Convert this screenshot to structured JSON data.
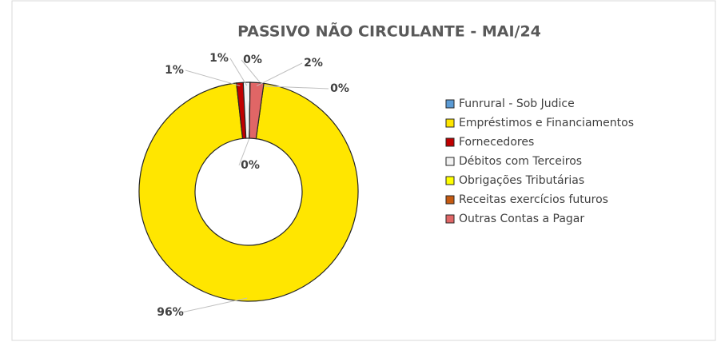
{
  "chart_data": {
    "type": "doughnut",
    "title": "PASSIVO NÃO CIRCULANTE - MAI/24",
    "categories": [
      "Funrural - Sob Judice",
      "Empréstimos e Financiamentos",
      "Fornecedores",
      "Débitos com Terceiros",
      "Obrigações Tributárias",
      "Receitas exercícios futuros",
      "Outras Contas a Pagar"
    ],
    "values": [
      0,
      96,
      1,
      1,
      0,
      0,
      2
    ],
    "value_labels": [
      "0%",
      "96%",
      "1%",
      "1%",
      "0%",
      "0%",
      "2%"
    ],
    "colors": [
      "#5b9bd5",
      "#ffe600",
      "#c00000",
      "#f2f2f2",
      "#ffff00",
      "#c55a11",
      "#e06666"
    ],
    "legend": "right"
  }
}
